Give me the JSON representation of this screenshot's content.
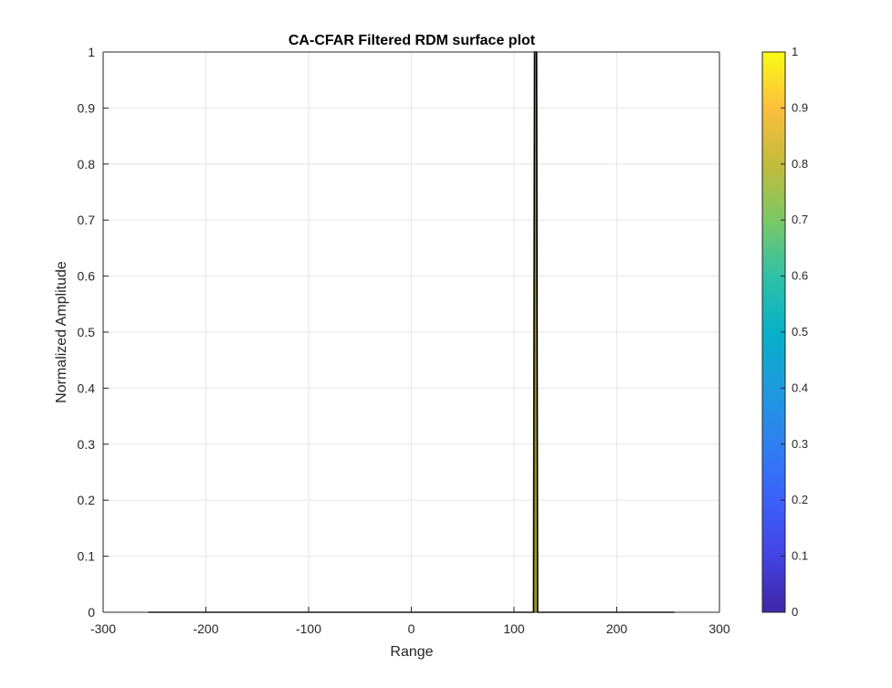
{
  "chart_data": {
    "type": "line",
    "title": "CA-CFAR Filtered RDM surface plot",
    "xlabel": "Range",
    "ylabel": "Normalized Amplitude",
    "xlim": [
      -300,
      300
    ],
    "ylim": [
      0,
      1
    ],
    "xticks": [
      -300,
      -200,
      -100,
      0,
      100,
      200,
      300
    ],
    "yticks": [
      0,
      0.1,
      0.2,
      0.3,
      0.4,
      0.5,
      0.6,
      0.7,
      0.8,
      0.9,
      1
    ],
    "grid": true,
    "series": [
      {
        "x": [
          -256,
          119,
          120,
          121,
          122,
          123,
          256
        ],
        "y": [
          0,
          0,
          1,
          1,
          1,
          0,
          0
        ]
      }
    ],
    "colorbar": {
      "colormap": "parula",
      "range": [
        0,
        1
      ],
      "ticks": [
        0,
        0.1,
        0.2,
        0.3,
        0.4,
        0.5,
        0.6,
        0.7,
        0.8,
        0.9,
        1
      ],
      "position": "right"
    }
  },
  "colors": {
    "line": "#000000",
    "peak_fill": "#9a9a28",
    "grid": "#e6e6e6",
    "axis": "#262626"
  }
}
